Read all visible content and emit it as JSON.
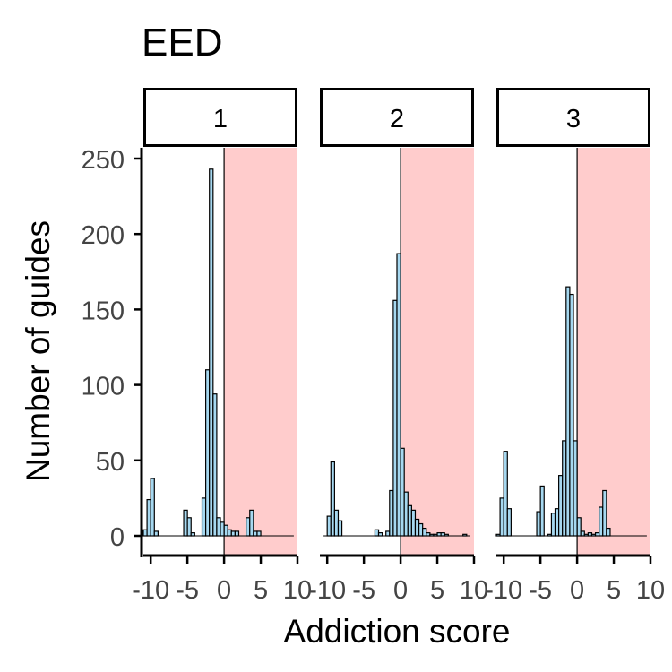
{
  "chart_data": {
    "type": "bar",
    "title": "EED",
    "xlabel": "Addiction score",
    "ylabel": "Number of guides",
    "xlim": [
      -11,
      10
    ],
    "ylim": [
      0,
      260
    ],
    "x_ticks": [
      -10,
      -5,
      0,
      5,
      10
    ],
    "x_tick_labels": [
      "-10",
      "-5",
      "0",
      "5",
      "10"
    ],
    "y_ticks": [
      0,
      50,
      100,
      150,
      200,
      250
    ],
    "y_tick_labels": [
      "0",
      "50",
      "100",
      "150",
      "200",
      "250"
    ],
    "bin_width": 0.5,
    "reference_line_x": 0,
    "highlight_region": {
      "from": 0,
      "to": 10,
      "color": "#ffcccc"
    },
    "bar_fill": "#a6d8f0",
    "bar_stroke": "#000000",
    "grid": false,
    "panels": [
      {
        "label": "1",
        "bins": [
          {
            "x": -10.75,
            "count": 4
          },
          {
            "x": -10.25,
            "count": 24
          },
          {
            "x": -9.75,
            "count": 38
          },
          {
            "x": -9.25,
            "count": 3
          },
          {
            "x": -5.25,
            "count": 17
          },
          {
            "x": -4.75,
            "count": 12
          },
          {
            "x": -4.25,
            "count": 2
          },
          {
            "x": -2.75,
            "count": 25
          },
          {
            "x": -2.25,
            "count": 110
          },
          {
            "x": -1.75,
            "count": 243
          },
          {
            "x": -1.25,
            "count": 94
          },
          {
            "x": -0.75,
            "count": 12
          },
          {
            "x": -0.25,
            "count": 9
          },
          {
            "x": 0.25,
            "count": 7
          },
          {
            "x": 0.75,
            "count": 4
          },
          {
            "x": 1.25,
            "count": 3
          },
          {
            "x": 1.75,
            "count": 3
          },
          {
            "x": 3.25,
            "count": 12
          },
          {
            "x": 3.75,
            "count": 17
          },
          {
            "x": 4.25,
            "count": 3
          },
          {
            "x": 4.75,
            "count": 3
          }
        ]
      },
      {
        "label": "2",
        "bins": [
          {
            "x": -9.75,
            "count": 13
          },
          {
            "x": -9.25,
            "count": 49
          },
          {
            "x": -8.75,
            "count": 17
          },
          {
            "x": -8.25,
            "count": 10
          },
          {
            "x": -3.25,
            "count": 4
          },
          {
            "x": -2.75,
            "count": 2
          },
          {
            "x": -1.75,
            "count": 3
          },
          {
            "x": -1.25,
            "count": 30
          },
          {
            "x": -0.75,
            "count": 156
          },
          {
            "x": -0.25,
            "count": 187
          },
          {
            "x": 0.25,
            "count": 58
          },
          {
            "x": 0.75,
            "count": 29
          },
          {
            "x": 1.25,
            "count": 20
          },
          {
            "x": 1.75,
            "count": 17
          },
          {
            "x": 2.25,
            "count": 11
          },
          {
            "x": 2.75,
            "count": 8
          },
          {
            "x": 3.25,
            "count": 5
          },
          {
            "x": 3.75,
            "count": 2
          },
          {
            "x": 4.25,
            "count": 1
          },
          {
            "x": 4.75,
            "count": 1
          },
          {
            "x": 5.25,
            "count": 2
          },
          {
            "x": 5.75,
            "count": 2
          },
          {
            "x": 6.25,
            "count": 1
          },
          {
            "x": 8.75,
            "count": 1
          }
        ]
      },
      {
        "label": "3",
        "bins": [
          {
            "x": -10.75,
            "count": 1
          },
          {
            "x": -10.25,
            "count": 25
          },
          {
            "x": -9.75,
            "count": 56
          },
          {
            "x": -9.25,
            "count": 18
          },
          {
            "x": -5.25,
            "count": 16
          },
          {
            "x": -4.75,
            "count": 33
          },
          {
            "x": -3.75,
            "count": 1
          },
          {
            "x": -3.25,
            "count": 15
          },
          {
            "x": -2.75,
            "count": 18
          },
          {
            "x": -2.25,
            "count": 40
          },
          {
            "x": -1.75,
            "count": 63
          },
          {
            "x": -1.25,
            "count": 165
          },
          {
            "x": -0.75,
            "count": 160
          },
          {
            "x": -0.25,
            "count": 63
          },
          {
            "x": 0.25,
            "count": 12
          },
          {
            "x": 0.75,
            "count": 3
          },
          {
            "x": 1.25,
            "count": 1
          },
          {
            "x": 1.75,
            "count": 2
          },
          {
            "x": 2.25,
            "count": 1
          },
          {
            "x": 2.75,
            "count": 2
          },
          {
            "x": 3.25,
            "count": 19
          },
          {
            "x": 3.75,
            "count": 30
          },
          {
            "x": 4.25,
            "count": 5
          }
        ]
      }
    ]
  }
}
